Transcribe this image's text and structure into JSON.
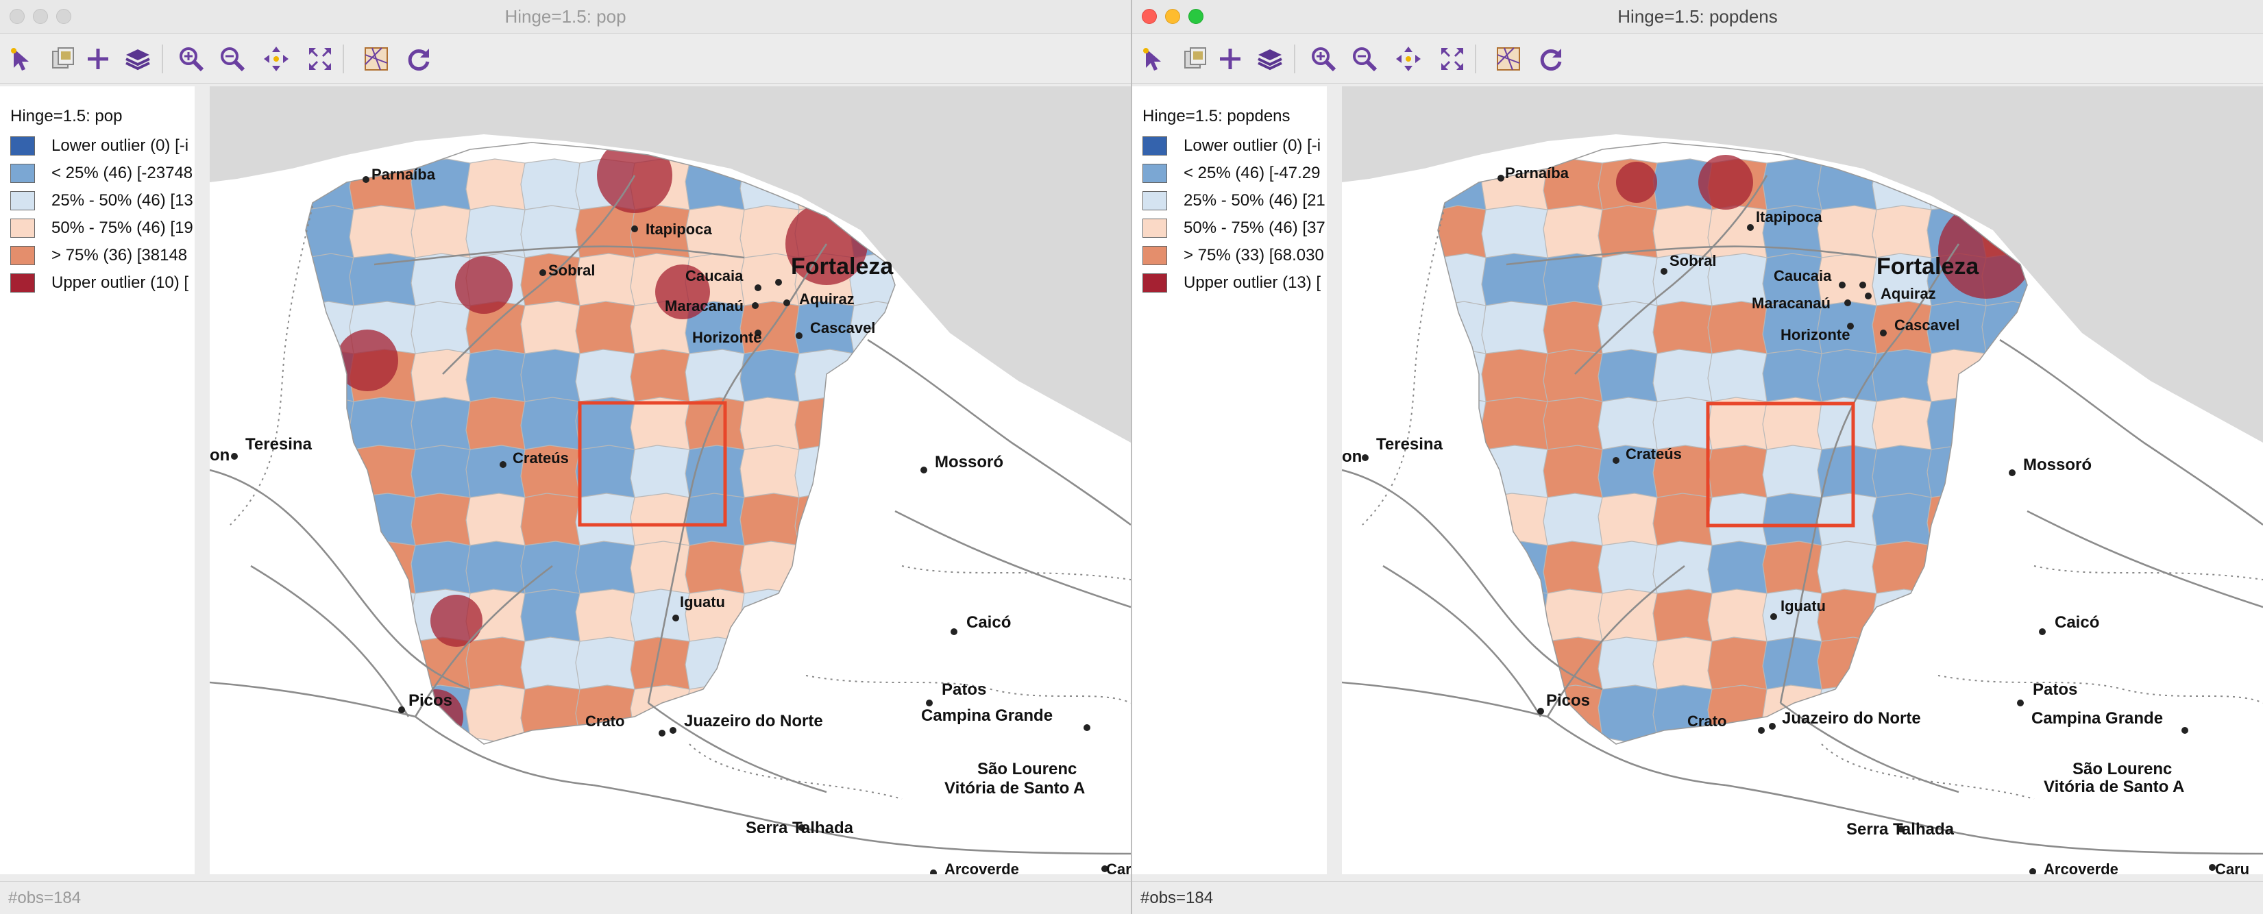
{
  "windows": [
    {
      "title": "Hinge=1.5: pop",
      "legend": {
        "title": "Hinge=1.5: pop",
        "items": [
          {
            "label": "Lower outlier (0)  [-i",
            "color": "#3463ad"
          },
          {
            "label": "< 25% (46)  [-23748",
            "color": "#7ba7d3"
          },
          {
            "label": "25% - 50% (46)  [13",
            "color": "#d4e3f1"
          },
          {
            "label": "50% - 75% (46)  [19",
            "color": "#fad9c6"
          },
          {
            "label": "> 75% (36)  [38148",
            "color": "#e48e6c"
          },
          {
            "label": "Upper outlier (10)  [",
            "color": "#a52132"
          }
        ]
      },
      "status": "#obs=184"
    },
    {
      "title": "Hinge=1.5: popdens",
      "legend": {
        "title": "Hinge=1.5: popdens",
        "items": [
          {
            "label": "Lower outlier (0)  [-i",
            "color": "#3463ad"
          },
          {
            "label": "< 25% (46)  [-47.29",
            "color": "#7ba7d3"
          },
          {
            "label": "25% - 50% (46)  [21",
            "color": "#d4e3f1"
          },
          {
            "label": "50% - 75% (46)  [37",
            "color": "#fad9c6"
          },
          {
            "label": "> 75% (33)  [68.030",
            "color": "#e48e6c"
          },
          {
            "label": "Upper outlier (13)  [",
            "color": "#a52132"
          }
        ]
      },
      "status": "#obs=184"
    }
  ],
  "toolbar_icons": [
    "select-icon",
    "copy-map-icon",
    "plus-icon",
    "layers-icon",
    "zoom-in-icon",
    "zoom-out-icon",
    "pan-icon",
    "full-extent-icon",
    "basemap-icon",
    "refresh-icon"
  ],
  "cities": {
    "parnaiba": "Parnaíba",
    "itapipoca": "Itapipoca",
    "sobral": "Sobral",
    "caucaia": "Caucaia",
    "fortaleza": "Fortaleza",
    "maracanau": "Maracanaú",
    "aquiraz": "Aquiraz",
    "horizonte": "Horizonte",
    "cascavel": "Cascavel",
    "teresina": "Teresina",
    "on": "on",
    "crateus": "Crateús",
    "mossoro": "Mossoró",
    "iguatu": "Iguatu",
    "caico": "Caicó",
    "picos": "Picos",
    "patos": "Patos",
    "campina": "Campina Grande",
    "crato": "Crato",
    "juazeiro": "Juazeiro do Norte",
    "saolourenco": "São Lourenc",
    "vitoria": "Vitória de Santo A",
    "serra": "Serra Talhada",
    "arcoverde": "Arcoverde",
    "caru": "Caru"
  },
  "colors": {
    "sea": "#d9d9d9",
    "selection": "#e8462a",
    "road": "#8c8c8c"
  }
}
